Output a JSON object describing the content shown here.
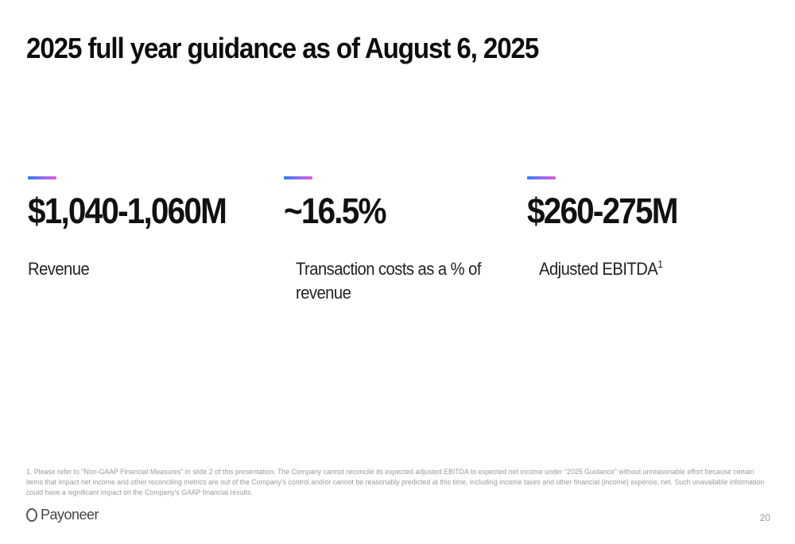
{
  "title": "2025 full year guidance as of August 6, 2025",
  "metrics": [
    {
      "value": "$1,040-1,060M",
      "label": "Revenue",
      "footnote_mark": ""
    },
    {
      "value": "~16.5%",
      "label_line1": "Transaction costs as a % of",
      "label_line2": "revenue",
      "footnote_mark": ""
    },
    {
      "value": "$260-275M",
      "label": "Adjusted EBITDA",
      "footnote_mark": "1"
    }
  ],
  "accent_gradient": [
    "#2f7ff2",
    "#8e6cf0",
    "#e35fd6"
  ],
  "footnote": "1. Please refer to \"Non-GAAP Financial Measures\" in slide 2 of this presentation. The Company cannot reconcile its expected adjusted EBITDA to expected net income under \"2025 Guidance\" without unreasonable effort because certain items that impact net income and other reconciling metrics are out of the Company's control and/or cannot be reasonably predicted at this time, including income taxes and other financial (income) expense, net. Such unavailable information could have a significant impact on the Company's GAAP financial results.",
  "brand": {
    "name": "Payoneer",
    "icon": "payoneer-ring-icon"
  },
  "page_number": "20"
}
